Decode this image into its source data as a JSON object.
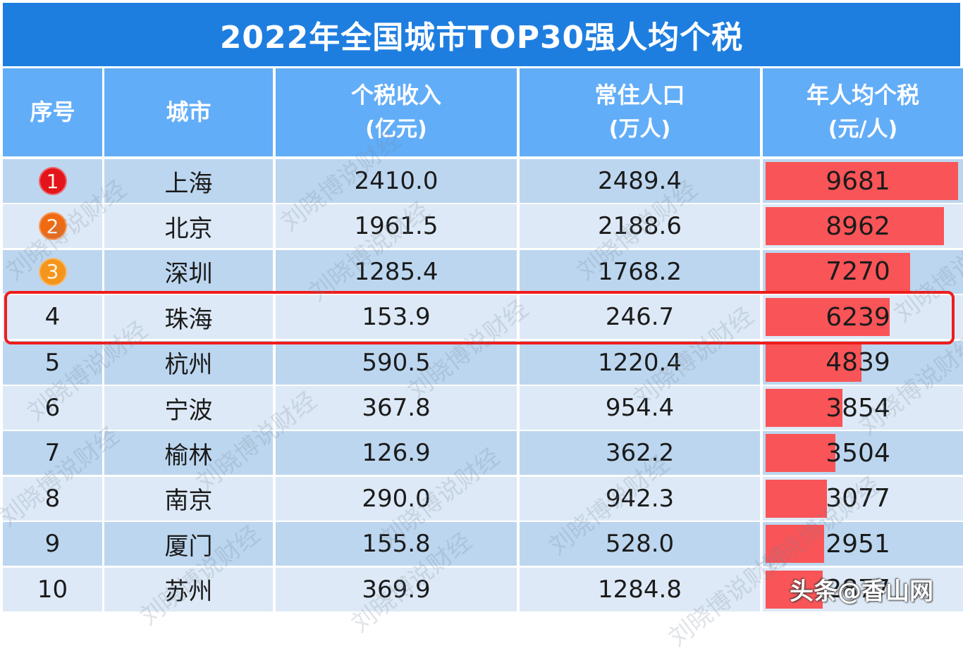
{
  "title": "2022年全国城市TOP30强人均个税",
  "columns": [
    {
      "label": "序号",
      "unit": ""
    },
    {
      "label": "城市",
      "unit": ""
    },
    {
      "label": "个税收入",
      "unit": "(亿元)"
    },
    {
      "label": "常住人口",
      "unit": "(万人)"
    },
    {
      "label": "年人均个税",
      "unit": "(元/人)"
    }
  ],
  "rows": [
    {
      "rank": "1",
      "city": "上海",
      "tax_income": "2410.0",
      "population": "2489.4",
      "per_capita": "9681",
      "medal_color": "#e3141b"
    },
    {
      "rank": "2",
      "city": "北京",
      "tax_income": "1961.5",
      "population": "2188.6",
      "per_capita": "8962",
      "medal_color": "#f06a12"
    },
    {
      "rank": "3",
      "city": "深圳",
      "tax_income": "1285.4",
      "population": "1768.2",
      "per_capita": "7270",
      "medal_color": "#f5951c"
    },
    {
      "rank": "4",
      "city": "珠海",
      "tax_income": "153.9",
      "population": "246.7",
      "per_capita": "6239",
      "highlighted": true
    },
    {
      "rank": "5",
      "city": "杭州",
      "tax_income": "590.5",
      "population": "1220.4",
      "per_capita": "4839"
    },
    {
      "rank": "6",
      "city": "宁波",
      "tax_income": "367.8",
      "population": "954.4",
      "per_capita": "3854"
    },
    {
      "rank": "7",
      "city": "榆林",
      "tax_income": "126.9",
      "population": "362.2",
      "per_capita": "3504"
    },
    {
      "rank": "8",
      "city": "南京",
      "tax_income": "290.0",
      "population": "942.3",
      "per_capita": "3077"
    },
    {
      "rank": "9",
      "city": "厦门",
      "tax_income": "155.8",
      "population": "528.0",
      "per_capita": "2951"
    },
    {
      "rank": "10",
      "city": "苏州",
      "tax_income": "369.9",
      "population": "1284.8",
      "per_capita": "2877"
    }
  ],
  "colors": {
    "title_bg": "#1e7ee0",
    "header_bg": "#62adf8",
    "row_odd": "#bcd6ef",
    "row_even": "#dde9f6",
    "bar": "#f95457",
    "highlight_border": "#ee1c1c"
  },
  "watermark_text": "刘晓博说财经",
  "source_tag": "头条@香山网",
  "chart_data": {
    "type": "table",
    "title": "2022年全国城市TOP30强人均个税",
    "columns": [
      "序号",
      "城市",
      "个税收入(亿元)",
      "常住人口(万人)",
      "年人均个税(元/人)"
    ],
    "categories": [
      "上海",
      "北京",
      "深圳",
      "珠海",
      "杭州",
      "宁波",
      "榆林",
      "南京",
      "厦门",
      "苏州"
    ],
    "series": [
      {
        "name": "个税收入(亿元)",
        "values": [
          2410.0,
          1961.5,
          1285.4,
          153.9,
          590.5,
          367.8,
          126.9,
          290.0,
          155.8,
          369.9
        ]
      },
      {
        "name": "常住人口(万人)",
        "values": [
          2489.4,
          2188.6,
          1768.2,
          246.7,
          1220.4,
          954.4,
          362.2,
          942.3,
          528.0,
          1284.8
        ]
      },
      {
        "name": "年人均个税(元/人)",
        "values": [
          9681,
          8962,
          7270,
          6239,
          4839,
          3854,
          3504,
          3077,
          2951,
          2877
        ]
      }
    ],
    "bar_column": "年人均个税(元/人)",
    "bar_max": 9681,
    "highlighted_row": "珠海",
    "notes": "Row 10 per-capita value obscured by overlay; ~2877 estimated from bar length and income/population"
  }
}
